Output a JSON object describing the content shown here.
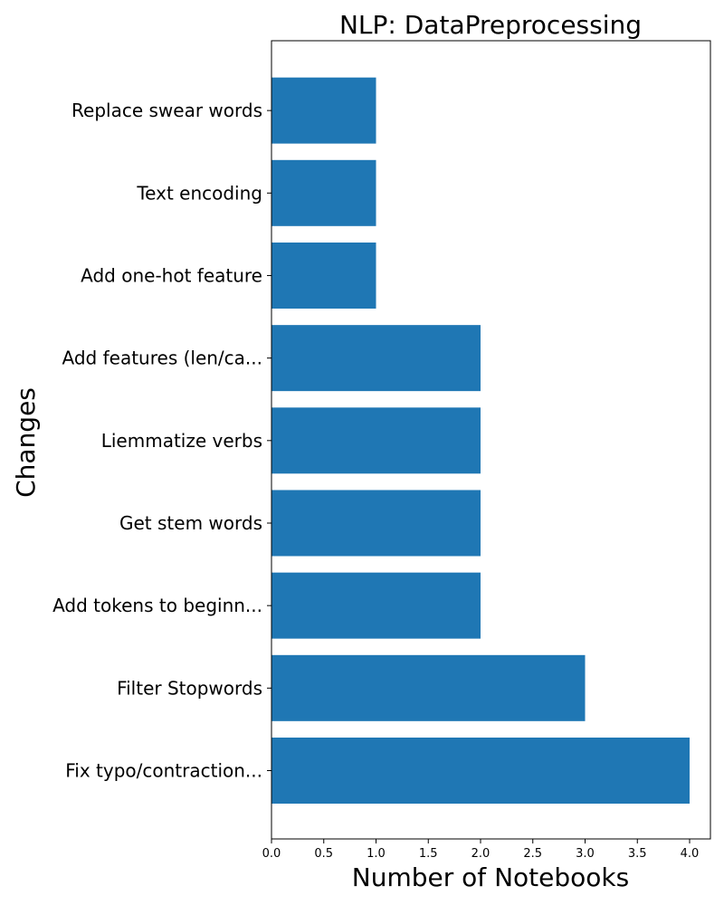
{
  "chart_data": {
    "type": "bar",
    "orientation": "horizontal",
    "title": "NLP: DataPreprocessing",
    "xlabel": "Number of Notebooks",
    "ylabel": "Changes",
    "categories": [
      "Fix typo/contraction...",
      "Filter Stopwords",
      "Add tokens to beginn...",
      "Get stem words",
      "Liemmatize verbs",
      "Add features (len/ca...",
      "Add one-hot feature",
      "Text encoding",
      "Replace swear words"
    ],
    "values": [
      4,
      3,
      2,
      2,
      2,
      2,
      1,
      1,
      1
    ],
    "xlim": [
      0,
      4.2
    ],
    "xticks": [
      0.0,
      0.5,
      1.0,
      1.5,
      2.0,
      2.5,
      3.0,
      3.5,
      4.0
    ],
    "xtick_labels": [
      "0.0",
      "0.5",
      "1.0",
      "1.5",
      "2.0",
      "2.5",
      "3.0",
      "3.5",
      "4.0"
    ],
    "bar_color": "#1f77b4",
    "grid": false,
    "legend": "none"
  }
}
